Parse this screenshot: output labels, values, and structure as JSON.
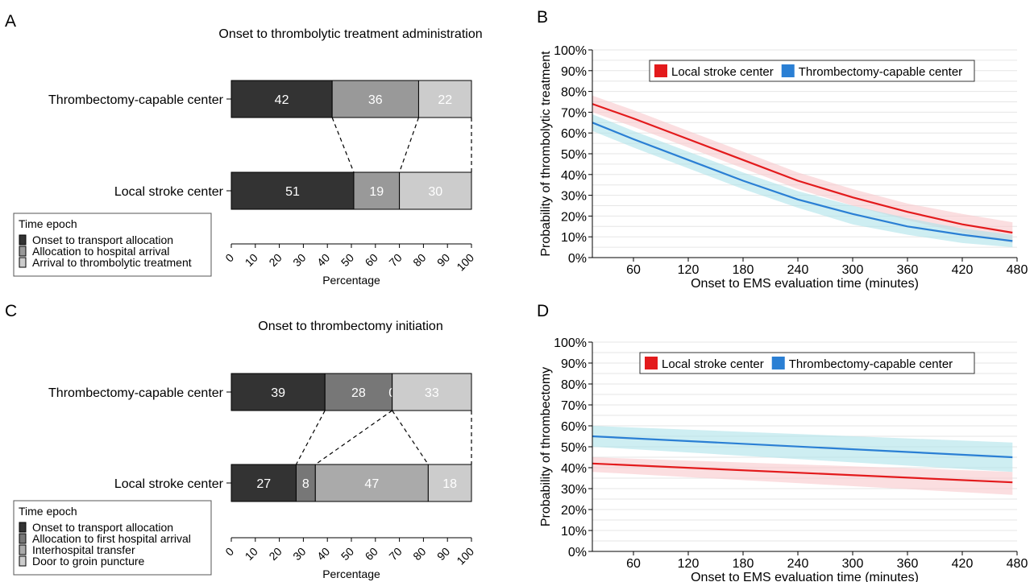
{
  "chart_data": [
    {
      "panel": "A",
      "type": "bar",
      "orientation": "horizontal",
      "stacked": true,
      "title": "Onset to thrombolytic treatment administration",
      "xlabel": "Percentage",
      "xlim": [
        0,
        100
      ],
      "xticks": [
        "0",
        "10",
        "20",
        "30",
        "40",
        "50",
        "60",
        "70",
        "80",
        "90",
        "100"
      ],
      "categories": [
        "Thrombectomy-capable center",
        "Local stroke center"
      ],
      "legend_title": "Time epoch",
      "legend_position": "bottom-left",
      "series": [
        {
          "name": "Onset to transport allocation",
          "color": "#333333",
          "label_color": "#ffffff",
          "values": [
            42,
            51
          ]
        },
        {
          "name": "Allocation to hospital arrival",
          "color": "#999999",
          "label_color": "#ffffff",
          "values": [
            36,
            19
          ]
        },
        {
          "name": "Arrival to thrombolytic treatment",
          "color": "#cccccc",
          "label_color": "#ffffff",
          "values": [
            22,
            30
          ]
        }
      ],
      "connectors": true
    },
    {
      "panel": "B",
      "type": "line",
      "xlabel": "Onset to EMS evaluation time (minutes)",
      "ylabel": "Probability of thrombolytic treatment",
      "xlim": [
        15,
        480
      ],
      "ylim": [
        0,
        100
      ],
      "xticks": [
        60,
        120,
        180,
        240,
        300,
        360,
        420,
        480
      ],
      "yticks": [
        "0%",
        "10%",
        "20%",
        "30%",
        "40%",
        "50%",
        "60%",
        "70%",
        "80%",
        "90%",
        "100%"
      ],
      "grid": true,
      "legend_position": "top",
      "series": [
        {
          "name": "Local stroke center",
          "color": "#e31a1c",
          "band_color": "#f8c8cc",
          "x": [
            15,
            60,
            120,
            180,
            240,
            300,
            360,
            420,
            475
          ],
          "y": [
            74,
            67,
            57,
            47,
            37,
            29,
            22,
            16,
            12
          ],
          "lower": [
            70,
            63,
            53,
            43,
            33,
            25,
            18,
            12,
            7
          ],
          "upper": [
            78,
            71,
            61,
            51,
            41,
            33,
            26,
            21,
            17
          ]
        },
        {
          "name": "Thrombectomy-capable center",
          "color": "#2a7fd4",
          "band_color": "#aee3ea",
          "x": [
            15,
            60,
            120,
            180,
            240,
            300,
            360,
            420,
            475
          ],
          "y": [
            65,
            57,
            47,
            37,
            28,
            21,
            15,
            11,
            8
          ],
          "lower": [
            61,
            53,
            43,
            33,
            24,
            16,
            11,
            7,
            5
          ],
          "upper": [
            69,
            61,
            51,
            41,
            32,
            25,
            19,
            14,
            11
          ]
        }
      ]
    },
    {
      "panel": "C",
      "type": "bar",
      "orientation": "horizontal",
      "stacked": true,
      "title": "Onset to thrombectomy initiation",
      "xlabel": "Percentage",
      "xlim": [
        0,
        100
      ],
      "xticks": [
        "0",
        "10",
        "20",
        "30",
        "40",
        "50",
        "60",
        "70",
        "80",
        "90",
        "100"
      ],
      "categories": [
        "Thrombectomy-capable center",
        "Local stroke center"
      ],
      "legend_title": "Time epoch",
      "legend_position": "bottom-left",
      "series": [
        {
          "name": "Onset to transport allocation",
          "color": "#333333",
          "label_color": "#ffffff",
          "values": [
            39,
            27
          ]
        },
        {
          "name": "Allocation to first hospital arrival",
          "color": "#777777",
          "label_color": "#ffffff",
          "values": [
            28,
            8
          ]
        },
        {
          "name": "Interhospital transfer",
          "color": "#aaaaaa",
          "label_color": "#ffffff",
          "values": [
            0,
            47
          ]
        },
        {
          "name": "Door to groin puncture",
          "color": "#cccccc",
          "label_color": "#ffffff",
          "values": [
            33,
            18
          ]
        }
      ],
      "connectors": true
    },
    {
      "panel": "D",
      "type": "line",
      "xlabel": "Onset to EMS evaluation time (minutes)",
      "ylabel": "Probability of thrombectomy",
      "xlim": [
        15,
        480
      ],
      "ylim": [
        0,
        100
      ],
      "xticks": [
        60,
        120,
        180,
        240,
        300,
        360,
        420,
        480
      ],
      "yticks": [
        "0%",
        "10%",
        "20%",
        "30%",
        "40%",
        "50%",
        "60%",
        "70%",
        "80%",
        "90%",
        "100%"
      ],
      "grid": true,
      "legend_position": "top",
      "series": [
        {
          "name": "Local stroke center",
          "color": "#e31a1c",
          "band_color": "#f8c8cc",
          "x": [
            15,
            475
          ],
          "y": [
            42,
            33
          ],
          "lower": [
            38,
            27
          ],
          "upper": [
            45,
            38
          ]
        },
        {
          "name": "Thrombectomy-capable center",
          "color": "#2a7fd4",
          "band_color": "#aee3ea",
          "x": [
            15,
            475
          ],
          "y": [
            55,
            45
          ],
          "lower": [
            50,
            38
          ],
          "upper": [
            60,
            52
          ]
        }
      ]
    }
  ]
}
